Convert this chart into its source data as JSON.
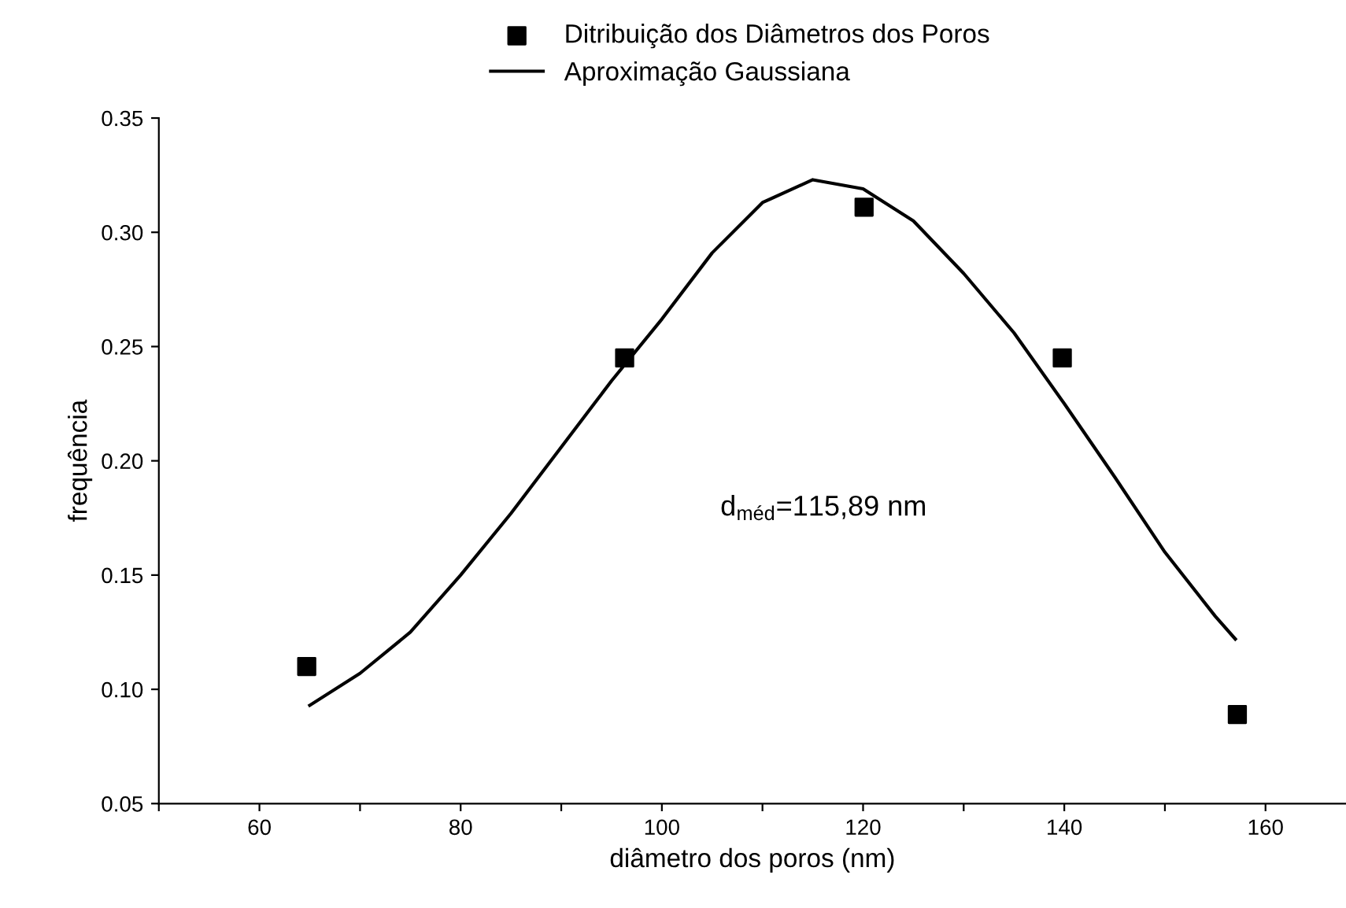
{
  "chart_data": {
    "type": "scatter",
    "xlabel": "diâmetro dos poros (nm)",
    "ylabel": "frequência",
    "series": [
      {
        "name": "Ditribuição dos Diâmetros dos Poros",
        "marker": "square",
        "color": "#000000",
        "x": [
          64.7,
          96.3,
          120.1,
          139.8,
          157.2
        ],
        "values": [
          0.11,
          0.245,
          0.311,
          0.245,
          0.089
        ]
      },
      {
        "name": "Aproximação Gaussiana",
        "type": "line",
        "marker": "none",
        "line_style": "solid",
        "color": "#000000",
        "x": [
          65,
          70,
          75,
          80,
          85,
          90,
          95,
          100,
          105,
          110,
          115,
          120,
          125,
          130,
          135,
          140,
          145,
          150,
          155,
          157
        ],
        "values": [
          0.093,
          0.107,
          0.125,
          0.15,
          0.177,
          0.206,
          0.235,
          0.262,
          0.291,
          0.313,
          0.323,
          0.319,
          0.305,
          0.282,
          0.256,
          0.225,
          0.193,
          0.16,
          0.132,
          0.122
        ]
      }
    ],
    "xlim": [
      50,
      168
    ],
    "xticks": [
      {
        "value": 50,
        "label": null
      },
      60,
      {
        "value": 70,
        "label": null
      },
      80,
      {
        "value": 90,
        "label": null
      },
      100,
      {
        "value": 110,
        "label": null
      },
      120,
      {
        "value": 130,
        "label": null
      },
      140,
      {
        "value": 150,
        "label": null
      },
      160
    ],
    "ylim": [
      0.05,
      0.35
    ],
    "yticks": [
      {
        "value": 0.05,
        "label": "0.05"
      },
      {
        "value": 0.1,
        "label": "0.10"
      },
      {
        "value": 0.15,
        "label": "0.15"
      },
      {
        "value": 0.2,
        "label": "0.20"
      },
      {
        "value": 0.25,
        "label": "0.25"
      },
      {
        "value": 0.3,
        "label": "0.30"
      },
      {
        "value": 0.35,
        "label": "0.35"
      }
    ],
    "annotations": [
      "d$_{méd}$=115,89 nm"
    ],
    "legend": "top",
    "grid": false
  }
}
